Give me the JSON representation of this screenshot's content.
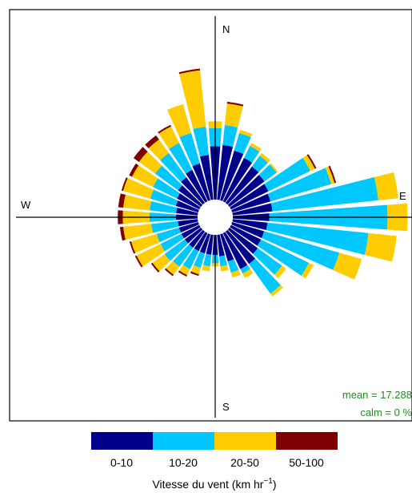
{
  "chart_data": {
    "type": "windrose",
    "compass": {
      "north": "N",
      "east": "E",
      "south": "S",
      "west": "W"
    },
    "annotations": {
      "mean": "mean  =  17.288",
      "calm": "calm  =  0 %"
    },
    "legend": {
      "placement": "bottom",
      "title": "Vitesse du vent (km hr",
      "title_exponent": "−1",
      "title_close": ")",
      "bins": [
        {
          "label": "0-10",
          "color": "#00008b"
        },
        {
          "label": "10-20",
          "color": "#00c8ff"
        },
        {
          "label": "20-50",
          "color": "#ffcc00"
        },
        {
          "label": "50-100",
          "color": "#7f0000"
        }
      ]
    },
    "sector_width_deg": 10,
    "sectors_note": "cumulative frequency at outer edge of each speed bin, relative units",
    "sectors": [
      {
        "dir": 0,
        "cum": [
          32,
          43,
          47,
          47
        ]
      },
      {
        "dir": 10,
        "cum": [
          33,
          45,
          58,
          59
        ]
      },
      {
        "dir": 20,
        "cum": [
          31,
          42,
          44,
          44
        ]
      },
      {
        "dir": 30,
        "cum": [
          29,
          37,
          39,
          39
        ]
      },
      {
        "dir": 40,
        "cum": [
          27,
          35,
          37,
          37
        ]
      },
      {
        "dir": 50,
        "cum": [
          26,
          35,
          36,
          36
        ]
      },
      {
        "dir": 60,
        "cum": [
          25,
          53,
          56,
          57
        ]
      },
      {
        "dir": 70,
        "cum": [
          24,
          62,
          64,
          65
        ]
      },
      {
        "dir": 80,
        "cum": [
          24,
          88,
          100,
          100
        ]
      },
      {
        "dir": 90,
        "cum": [
          22,
          93,
          105,
          105
        ]
      },
      {
        "dir": 100,
        "cum": [
          21,
          82,
          99,
          99
        ]
      },
      {
        "dir": 110,
        "cum": [
          20,
          67,
          81,
          81
        ]
      },
      {
        "dir": 120,
        "cum": [
          20,
          52,
          55,
          55
        ]
      },
      {
        "dir": 130,
        "cum": [
          21,
          39,
          42,
          42
        ]
      },
      {
        "dir": 140,
        "cum": [
          24,
          46,
          48,
          48
        ]
      },
      {
        "dir": 150,
        "cum": [
          24,
          27,
          30,
          30
        ]
      },
      {
        "dir": 160,
        "cum": [
          17,
          24,
          27,
          27
        ]
      },
      {
        "dir": 170,
        "cum": [
          13,
          19,
          22,
          22
        ]
      },
      {
        "dir": 180,
        "cum": [
          12,
          17,
          19,
          19
        ]
      },
      {
        "dir": 190,
        "cum": [
          12,
          19,
          22,
          22
        ]
      },
      {
        "dir": 200,
        "cum": [
          12,
          21,
          25,
          26
        ]
      },
      {
        "dir": 210,
        "cum": [
          12,
          24,
          28,
          29
        ]
      },
      {
        "dir": 220,
        "cum": [
          12,
          26,
          32,
          33
        ]
      },
      {
        "dir": 230,
        "cum": [
          12,
          27,
          36,
          37
        ]
      },
      {
        "dir": 240,
        "cum": [
          12,
          26,
          42,
          43
        ]
      },
      {
        "dir": 250,
        "cum": [
          12,
          26,
          42,
          43
        ]
      },
      {
        "dir": 260,
        "cum": [
          12,
          28,
          45,
          47
        ]
      },
      {
        "dir": 270,
        "cum": [
          13,
          29,
          45,
          48
        ]
      },
      {
        "dir": 280,
        "cum": [
          13,
          29,
          45,
          48
        ]
      },
      {
        "dir": 290,
        "cum": [
          14,
          30,
          47,
          48
        ]
      },
      {
        "dir": 300,
        "cum": [
          15,
          31,
          45,
          47
        ]
      },
      {
        "dir": 310,
        "cum": [
          17,
          34,
          46,
          50
        ]
      },
      {
        "dir": 320,
        "cum": [
          19,
          37,
          47,
          50
        ]
      },
      {
        "dir": 330,
        "cum": [
          21,
          39,
          50,
          51
        ]
      },
      {
        "dir": 340,
        "cum": [
          23,
          42,
          60,
          60
        ]
      },
      {
        "dir": 350,
        "cum": [
          27,
          44,
          78,
          79
        ]
      }
    ]
  }
}
